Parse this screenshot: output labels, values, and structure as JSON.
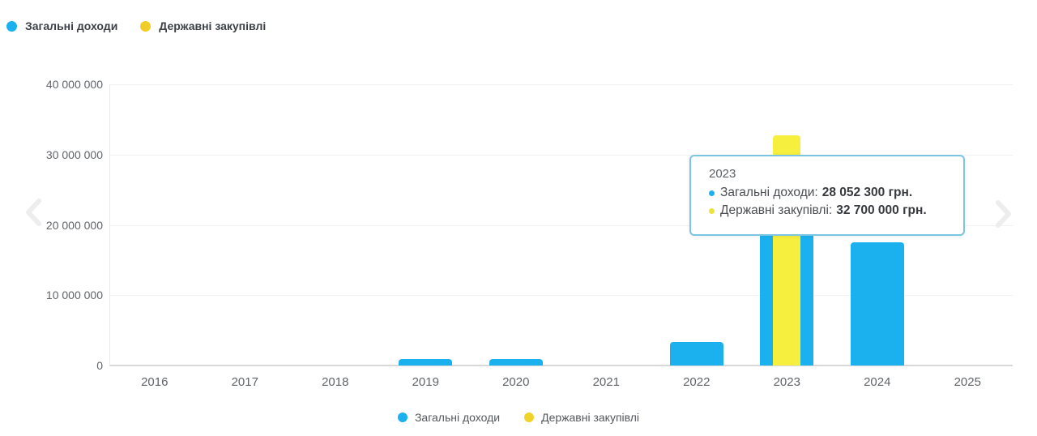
{
  "legend_top": {
    "items": [
      {
        "label": "Загальні доходи",
        "color": "#1bb1ef"
      },
      {
        "label": "Державні закупівлі",
        "color": "#f3cd27"
      }
    ]
  },
  "legend_bottom": {
    "items": [
      {
        "label": "Загальні доходи",
        "color": "#1bb1ef"
      },
      {
        "label": "Державні закупівлі",
        "color": "#f0d229"
      }
    ]
  },
  "tooltip": {
    "title": "2023",
    "rows": [
      {
        "label": "Загальні доходи:",
        "value": "28 052 300 грн.",
        "color": "#1bb1ef"
      },
      {
        "label": "Державні закупівлі:",
        "value": "32 700 000 грн.",
        "color": "#ede33e"
      }
    ]
  },
  "icons": {
    "prev": "chevron-left-icon",
    "next": "chevron-right-icon"
  },
  "colors": {
    "bar_blue": "#1bb1ef",
    "bar_yellow": "#f7ef3d",
    "tooltip_border": "#7ac4e4",
    "chevron": "#ededee"
  },
  "chart_data": {
    "type": "bar",
    "title": "",
    "xlabel": "",
    "ylabel": "",
    "categories": [
      "2016",
      "2017",
      "2018",
      "2019",
      "2020",
      "2021",
      "2022",
      "2023",
      "2024",
      "2025"
    ],
    "series": [
      {
        "name": "Загальні доходи",
        "key": "total-revenue",
        "color": "#1bb1ef",
        "values": [
          0,
          0,
          0,
          900000,
          900000,
          0,
          3300000,
          28052300,
          17500000,
          0
        ]
      },
      {
        "name": "Державні закупівлі",
        "key": "public-procurement",
        "color": "#f7ef3d",
        "values": [
          0,
          0,
          0,
          0,
          0,
          0,
          0,
          32700000,
          0,
          0
        ]
      }
    ],
    "ylim": [
      0,
      40000000
    ],
    "ytick_values": [
      0,
      10000000,
      20000000,
      30000000,
      40000000
    ],
    "ytick_labels": [
      "0",
      "10 000 000",
      "20 000 000",
      "30 000 000",
      "40 000 000"
    ],
    "grid": true,
    "legend_position": "top-left and bottom-center",
    "tooltip_category": "2023",
    "bar_style": "yellow series overlaid centered on wider blue series"
  }
}
